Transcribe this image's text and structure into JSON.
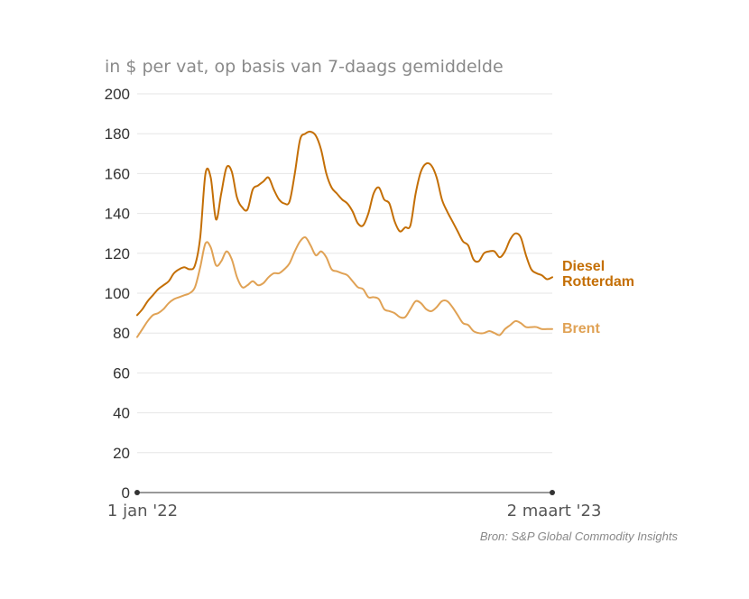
{
  "chart_data": {
    "type": "line",
    "subtitle": "in $ per vat, op basis van 7-daags gemiddelde",
    "source": "Bron: S&P Global Commodity Insights",
    "ylim": [
      0,
      200
    ],
    "yticks": [
      0,
      20,
      40,
      60,
      80,
      100,
      120,
      140,
      160,
      180,
      200
    ],
    "xrange": [
      "2022-01-01",
      "2023-03-02"
    ],
    "xtick_labels": [
      "1 jan '22",
      "2 maart '23"
    ],
    "grid": true,
    "legend": "labels at line ends",
    "series": [
      {
        "name": "Diesel Rotterdam",
        "name_lines": [
          "Diesel",
          "Rotterdam"
        ],
        "color": "#c46f06",
        "values": [
          89,
          92,
          96,
          99,
          102,
          104,
          106,
          110,
          112,
          113,
          112,
          114,
          128,
          160,
          158,
          137,
          150,
          163,
          161,
          148,
          143,
          142,
          152,
          154,
          156,
          158,
          152,
          147,
          145,
          146,
          160,
          177,
          180,
          181,
          179,
          172,
          160,
          153,
          150,
          147,
          145,
          141,
          135,
          134,
          140,
          150,
          153,
          147,
          145,
          136,
          131,
          133,
          134,
          150,
          161,
          165,
          164,
          158,
          147,
          141,
          136,
          131,
          126,
          124,
          117,
          116,
          120,
          121,
          121,
          118,
          121,
          127,
          130,
          128,
          119,
          112,
          110,
          109,
          107,
          108
        ]
      },
      {
        "name": "Brent",
        "name_lines": [
          "Brent"
        ],
        "color": "#e0a255",
        "values": [
          78,
          82,
          86,
          89,
          90,
          92,
          95,
          97,
          98,
          99,
          100,
          103,
          113,
          125,
          123,
          114,
          116,
          121,
          117,
          108,
          103,
          104,
          106,
          104,
          105,
          108,
          110,
          110,
          112,
          115,
          121,
          126,
          128,
          124,
          119,
          121,
          118,
          112,
          111,
          110,
          109,
          106,
          103,
          102,
          98,
          98,
          97,
          92,
          91,
          90,
          88,
          88,
          92,
          96,
          95,
          92,
          91,
          93,
          96,
          96,
          93,
          89,
          85,
          84,
          81,
          80,
          80,
          81,
          80,
          79,
          82,
          84,
          86,
          85,
          83,
          83,
          83,
          82,
          82,
          82
        ]
      }
    ]
  }
}
